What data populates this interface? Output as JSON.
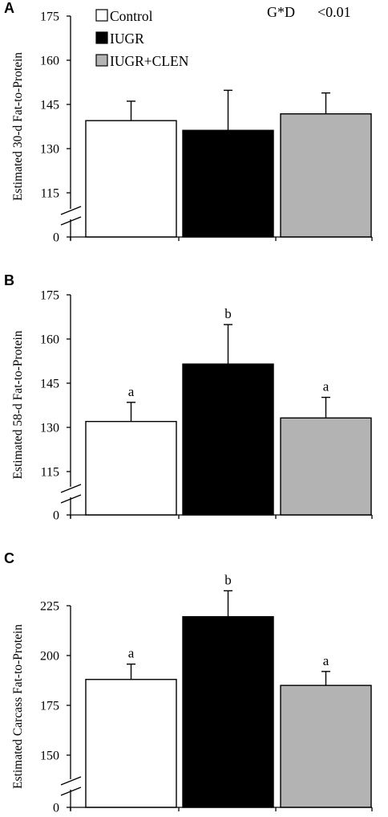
{
  "legend": [
    {
      "label": "Control",
      "color": "#ffffff"
    },
    {
      "label": "IUGR",
      "color": "#000000"
    },
    {
      "label": "IUGR+CLEN",
      "color": "#b3b3b3"
    }
  ],
  "annotation": {
    "term": "G*D",
    "p": "<0.01"
  },
  "chart_data": [
    {
      "panel": "A",
      "type": "bar",
      "ylabel": "Estimated 30-d Fat-to-Protein",
      "ylim": [
        100,
        175
      ],
      "yticks": [
        115,
        130,
        145,
        160,
        175
      ],
      "axis_break": true,
      "zero_label": "0",
      "categories": [
        "Control",
        "IUGR",
        "IUGR+CLEN"
      ],
      "values": [
        139.5,
        136.2,
        141.8
      ],
      "errors": [
        6.6,
        13.6,
        7.1
      ],
      "letters": [
        "",
        "",
        ""
      ]
    },
    {
      "panel": "B",
      "type": "bar",
      "ylabel": "Estimated 58-d Fat-to-Protein",
      "ylim": [
        100,
        175
      ],
      "yticks": [
        115,
        130,
        145,
        160,
        175
      ],
      "axis_break": true,
      "zero_label": "0",
      "categories": [
        "Control",
        "IUGR",
        "IUGR+CLEN"
      ],
      "values": [
        132.0,
        151.5,
        133.2
      ],
      "errors": [
        6.5,
        13.4,
        7.0
      ],
      "letters": [
        "a",
        "b",
        "a"
      ]
    },
    {
      "panel": "C",
      "type": "bar",
      "ylabel": "Estimated Carcass Fat-to-Protein",
      "ylim": [
        125,
        250
      ],
      "yticks": [
        150,
        175,
        200,
        225
      ],
      "axis_break": true,
      "zero_label": "0",
      "categories": [
        "Control",
        "IUGR",
        "IUGR+CLEN"
      ],
      "values": [
        188.0,
        219.5,
        185.0
      ],
      "errors": [
        7.7,
        13.0,
        7.0
      ],
      "letters": [
        "a",
        "b",
        "a"
      ]
    }
  ]
}
